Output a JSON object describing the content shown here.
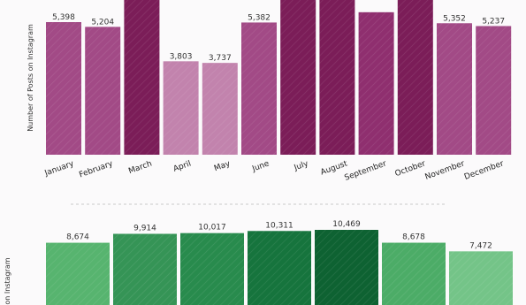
{
  "chart_data": [
    {
      "type": "bar",
      "ylabel": "Number of Posts on Instagram",
      "categories": [
        "January",
        "February",
        "March",
        "April",
        "May",
        "June",
        "July",
        "August",
        "September",
        "October",
        "November",
        "December"
      ],
      "values": [
        5398,
        5204,
        7500,
        3803,
        3737,
        5382,
        7500,
        7500,
        5800,
        7500,
        5352,
        5237
      ],
      "value_labels": [
        "5,398",
        "5,204",
        "",
        "3,803",
        "3,737",
        "5,382",
        "",
        "",
        "",
        "",
        "5,352",
        "5,237"
      ],
      "colors": [
        "#a24a86",
        "#a24a86",
        "#7b1d58",
        "#c283ad",
        "#c283ad",
        "#a24a86",
        "#7b1d58",
        "#7b1d58",
        "#8f2f6f",
        "#7b1d58",
        "#a24a86",
        "#a24a86"
      ]
    },
    {
      "type": "bar",
      "ylabel": "on Instagram",
      "values": [
        8674,
        9914,
        10017,
        10311,
        10469,
        8678,
        7472
      ],
      "value_labels": [
        "8,674",
        "9,914",
        "10,017",
        "10,311",
        "10,469",
        "8,678",
        "7,472"
      ],
      "colors": [
        "#57b46f",
        "#359456",
        "#288b4d",
        "#16743d",
        "#0e6232",
        "#4cac67",
        "#74c488"
      ]
    }
  ]
}
